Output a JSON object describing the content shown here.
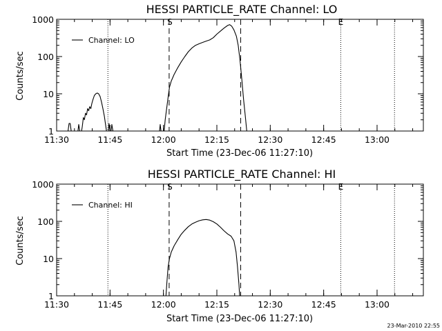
{
  "chart_data": [
    {
      "type": "line",
      "title": "HESSI PARTICLE_RATE Channel: LO",
      "xlabel": "Start Time (23-Dec-06 11:27:10)",
      "ylabel": "Counts/sec",
      "yscale": "log",
      "xlim_minutes": [
        690,
        793
      ],
      "ylim": [
        1,
        1000
      ],
      "x_ticks": [
        {
          "t": 690,
          "label": "11:30"
        },
        {
          "t": 705,
          "label": "11:45"
        },
        {
          "t": 720,
          "label": "12:00"
        },
        {
          "t": 735,
          "label": "12:15"
        },
        {
          "t": 750,
          "label": "12:30"
        },
        {
          "t": 765,
          "label": "12:45"
        },
        {
          "t": 780,
          "label": "13:00"
        }
      ],
      "y_ticks": [
        {
          "v": 1,
          "label": "1"
        },
        {
          "v": 10,
          "label": "10"
        },
        {
          "v": 100,
          "label": "100"
        },
        {
          "v": 1000,
          "label": "1000"
        }
      ],
      "legend": {
        "entries": [
          "Channel: LO"
        ],
        "position": "top-left"
      },
      "dashed_markers": [
        {
          "t": 721.6,
          "label": "S"
        },
        {
          "t": 741.7,
          "label": ""
        }
      ],
      "dotted_markers": [
        {
          "t": 704.4,
          "label": ""
        },
        {
          "t": 769.8,
          "label": "E"
        },
        {
          "t": 784.9,
          "label": ""
        }
      ],
      "series": [
        {
          "name": "Channel: LO",
          "segments": [
            [
              [
                693.2,
                1.0
              ],
              [
                693.5,
                1.6
              ],
              [
                693.8,
                1.6
              ],
              [
                694.1,
                1.0
              ]
            ],
            [
              [
                696.0,
                1.0
              ],
              [
                696.2,
                1.5
              ],
              [
                696.5,
                1.0
              ]
            ],
            [
              [
                697.0,
                1.0
              ],
              [
                697.2,
                1.3
              ],
              [
                697.5,
                2.3
              ],
              [
                697.8,
                2.0
              ],
              [
                698.1,
                3.0
              ],
              [
                698.4,
                2.7
              ],
              [
                698.7,
                4.0
              ],
              [
                699.0,
                3.5
              ],
              [
                699.3,
                4.5
              ],
              [
                699.6,
                4.0
              ],
              [
                699.9,
                5.5
              ],
              [
                700.2,
                7.0
              ],
              [
                700.6,
                9.0
              ],
              [
                701.0,
                10.0
              ],
              [
                701.4,
                10.5
              ],
              [
                701.8,
                10.0
              ],
              [
                702.2,
                8.5
              ],
              [
                702.6,
                6.0
              ],
              [
                703.0,
                4.0
              ],
              [
                703.4,
                2.5
              ],
              [
                703.7,
                1.6
              ],
              [
                704.0,
                1.0
              ]
            ],
            [
              [
                704.5,
                1.0
              ],
              [
                704.7,
                1.6
              ],
              [
                705.0,
                1.0
              ]
            ],
            [
              [
                705.3,
                1.0
              ],
              [
                705.5,
                1.5
              ],
              [
                705.8,
                1.0
              ]
            ],
            [
              [
                718.9,
                1.0
              ],
              [
                719.1,
                1.5
              ],
              [
                719.3,
                1.0
              ]
            ],
            [
              [
                720.2,
                1.0
              ],
              [
                720.5,
                2.0
              ],
              [
                720.9,
                4.0
              ],
              [
                721.3,
                8.0
              ],
              [
                721.7,
                15.0
              ],
              [
                722.2,
                22.0
              ],
              [
                723.0,
                33.0
              ],
              [
                724.0,
                50.0
              ],
              [
                725.0,
                72.0
              ],
              [
                726.0,
                100.0
              ],
              [
                727.0,
                135.0
              ],
              [
                728.0,
                170.0
              ],
              [
                729.0,
                200.0
              ],
              [
                730.0,
                220.0
              ],
              [
                731.0,
                240.0
              ],
              [
                732.0,
                260.0
              ],
              [
                733.0,
                280.0
              ],
              [
                734.0,
                320.0
              ],
              [
                735.0,
                400.0
              ],
              [
                736.0,
                480.0
              ],
              [
                737.0,
                580.0
              ],
              [
                738.0,
                680.0
              ],
              [
                738.6,
                720.0
              ],
              [
                739.2,
                650.0
              ],
              [
                739.8,
                520.0
              ],
              [
                740.5,
                350.0
              ],
              [
                741.0,
                200.0
              ],
              [
                741.5,
                80.0
              ],
              [
                742.0,
                25.0
              ],
              [
                742.5,
                7.0
              ],
              [
                743.0,
                2.5
              ],
              [
                743.4,
                1.0
              ]
            ]
          ]
        }
      ]
    },
    {
      "type": "line",
      "title": "HESSI PARTICLE_RATE Channel: HI",
      "xlabel": "Start Time (23-Dec-06 11:27:10)",
      "ylabel": "Counts/sec",
      "yscale": "log",
      "xlim_minutes": [
        690,
        793
      ],
      "ylim": [
        1,
        1000
      ],
      "x_ticks": [
        {
          "t": 690,
          "label": "11:30"
        },
        {
          "t": 705,
          "label": "11:45"
        },
        {
          "t": 720,
          "label": "12:00"
        },
        {
          "t": 735,
          "label": "12:15"
        },
        {
          "t": 750,
          "label": "12:30"
        },
        {
          "t": 765,
          "label": "12:45"
        },
        {
          "t": 780,
          "label": "13:00"
        }
      ],
      "y_ticks": [
        {
          "v": 1,
          "label": "1"
        },
        {
          "v": 10,
          "label": "10"
        },
        {
          "v": 100,
          "label": "100"
        },
        {
          "v": 1000,
          "label": "1000"
        }
      ],
      "legend": {
        "entries": [
          "Channel: HI"
        ],
        "position": "top-left"
      },
      "dashed_markers": [
        {
          "t": 721.6,
          "label": "S"
        },
        {
          "t": 741.7,
          "label": ""
        }
      ],
      "dotted_markers": [
        {
          "t": 704.4,
          "label": ""
        },
        {
          "t": 769.8,
          "label": "E"
        },
        {
          "t": 784.9,
          "label": ""
        }
      ],
      "series": [
        {
          "name": "Channel: HI",
          "segments": [
            [
              [
                720.7,
                1.0
              ],
              [
                721.0,
                2.5
              ],
              [
                721.3,
                6.0
              ],
              [
                721.7,
                10.0
              ],
              [
                722.2,
                15.0
              ],
              [
                723.0,
                22.0
              ],
              [
                724.0,
                32.0
              ],
              [
                725.0,
                45.0
              ],
              [
                726.0,
                58.0
              ],
              [
                727.0,
                72.0
              ],
              [
                728.0,
                85.0
              ],
              [
                729.0,
                95.0
              ],
              [
                730.0,
                104.0
              ],
              [
                731.0,
                110.0
              ],
              [
                732.0,
                112.0
              ],
              [
                733.0,
                108.0
              ],
              [
                734.0,
                98.0
              ],
              [
                735.0,
                85.0
              ],
              [
                736.0,
                70.0
              ],
              [
                737.0,
                56.0
              ],
              [
                738.0,
                46.0
              ],
              [
                739.0,
                40.0
              ],
              [
                739.8,
                30.0
              ],
              [
                740.4,
                15.0
              ],
              [
                740.8,
                6.0
              ],
              [
                741.2,
                2.0
              ],
              [
                741.4,
                1.0
              ]
            ]
          ]
        }
      ]
    }
  ],
  "footer": {
    "stamp": "23-Mar-2010 22:55"
  }
}
